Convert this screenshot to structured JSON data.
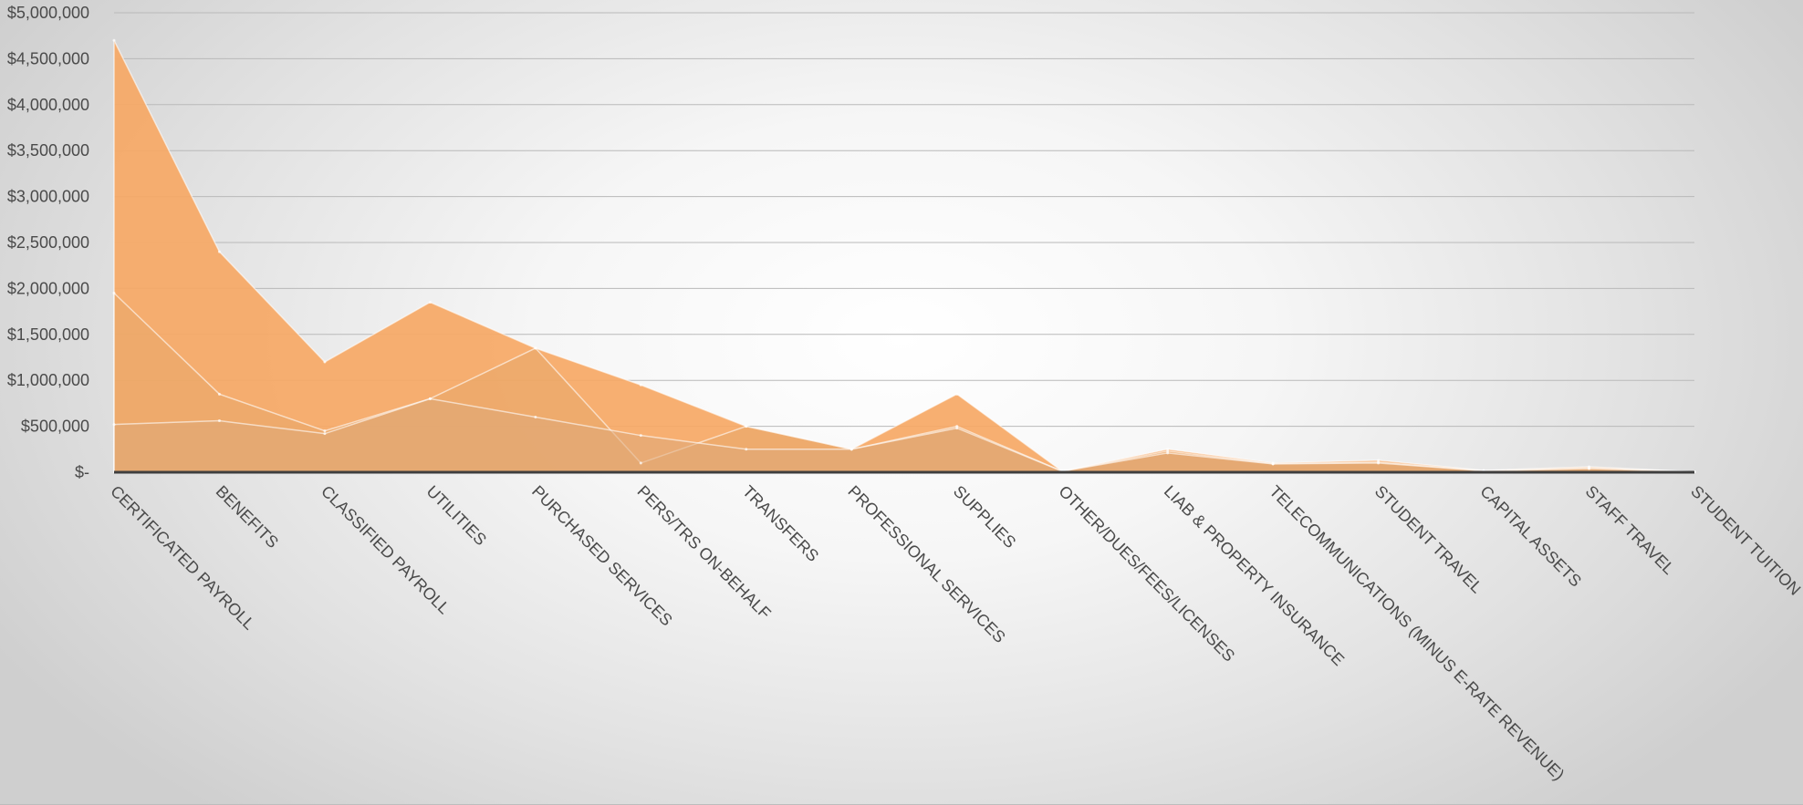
{
  "chart_data": {
    "type": "area",
    "title": "",
    "xlabel": "",
    "ylabel": "",
    "ylim": [
      0,
      5000000
    ],
    "grid": true,
    "legend": "none",
    "y_ticks": [
      {
        "value": 0,
        "label": "$-"
      },
      {
        "value": 500000,
        "label": "$500,000"
      },
      {
        "value": 1000000,
        "label": "$1,000,000"
      },
      {
        "value": 1500000,
        "label": "$1,500,000"
      },
      {
        "value": 2000000,
        "label": "$2,000,000"
      },
      {
        "value": 2500000,
        "label": "$2,500,000"
      },
      {
        "value": 3000000,
        "label": "$3,000,000"
      },
      {
        "value": 3500000,
        "label": "$3,500,000"
      },
      {
        "value": 4000000,
        "label": "$4,000,000"
      },
      {
        "value": 4500000,
        "label": "$4,500,000"
      },
      {
        "value": 5000000,
        "label": "$5,000,000"
      }
    ],
    "categories": [
      "CERTIFICATED PAYROLL",
      "BENEFITS",
      "CLASSIFIED PAYROLL",
      "UTILITIES",
      "PURCHASED SERVICES",
      "PERS/TRS ON-BEHALF",
      "TRANSFERS",
      "PROFESSIONAL SERVICES",
      "SUPPLIES",
      "OTHER/DUES/FEES/LICENSES",
      "LIAB & PROPERTY INSURANCE",
      "TELECOMMUNICATIONS (MINUS E-RATE REVENUE)",
      "STUDENT TRAVEL",
      "CAPITAL ASSETS",
      "STAFF TRAVEL",
      "STUDENT TUITION"
    ],
    "series": [
      {
        "values": [
          4700000,
          2400000,
          1200000,
          1850000,
          1350000,
          950000,
          500000,
          250000,
          850000,
          10000,
          250000,
          100000,
          130000,
          20000,
          60000,
          5000
        ]
      },
      {
        "values": [
          1950000,
          850000,
          450000,
          800000,
          1350000,
          100000,
          500000,
          250000,
          500000,
          10000,
          230000,
          90000,
          110000,
          15000,
          50000,
          5000
        ]
      },
      {
        "values": [
          520000,
          560000,
          420000,
          800000,
          600000,
          400000,
          250000,
          250000,
          480000,
          10000,
          210000,
          90000,
          100000,
          15000,
          40000,
          5000
        ]
      }
    ],
    "colors": {
      "area": "#f4a460",
      "area_fill_series": [
        "#f6a865",
        "#e8a86a",
        "#dea878"
      ],
      "area_opacity": [
        0.92,
        0.55,
        0.55
      ],
      "area_edge": "#ffffff",
      "grid": "#b9b9b9",
      "baseline": "#3f3f3f",
      "label": "#4a4a4a"
    }
  }
}
